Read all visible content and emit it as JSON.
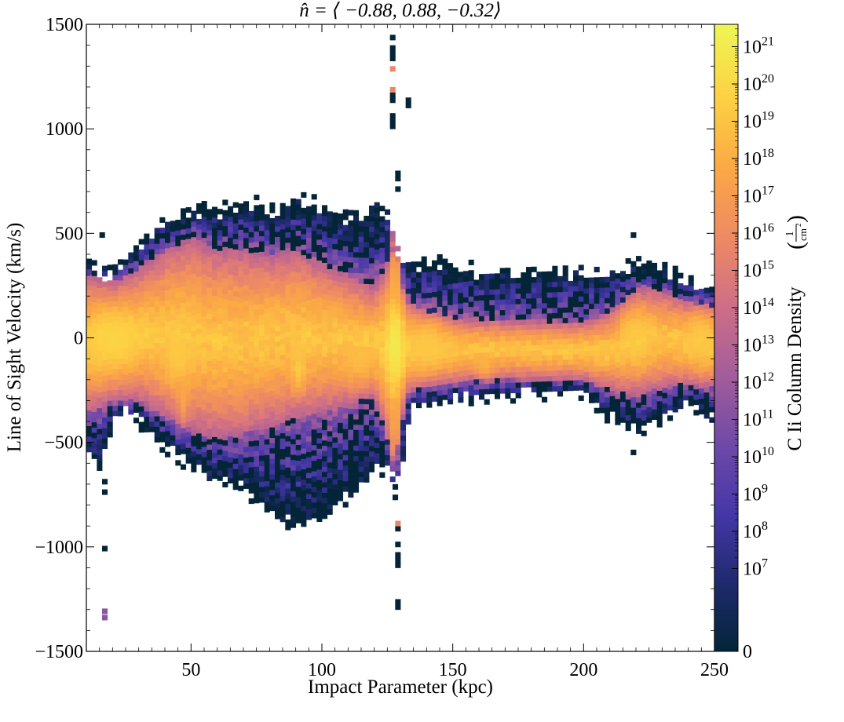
{
  "chart_data": {
    "type": "heatmap",
    "title": "n̂ = ⟨ −0.88, 0.88, −0.32⟩",
    "xlabel": "Impact Parameter (kpc)",
    "ylabel": "Line of Sight Velocity (km/s)",
    "xlim": [
      10,
      250
    ],
    "ylim": [
      -1500,
      1500
    ],
    "x_ticks": [
      {
        "value": 50,
        "label": "50"
      },
      {
        "value": 100,
        "label": "100"
      },
      {
        "value": 150,
        "label": "150"
      },
      {
        "value": 200,
        "label": "200"
      },
      {
        "value": 250,
        "label": "250"
      }
    ],
    "y_ticks": [
      {
        "value": -1500,
        "label": "−1500"
      },
      {
        "value": -1000,
        "label": "−1000"
      },
      {
        "value": -500,
        "label": "−500"
      },
      {
        "value": 0,
        "label": "0"
      },
      {
        "value": 500,
        "label": "500"
      },
      {
        "value": 1000,
        "label": "1000"
      },
      {
        "value": 1500,
        "label": "1500"
      }
    ],
    "colorbar": {
      "label": "C Ii Column Density",
      "unit": "(1/cm²)",
      "unit_num": "1",
      "unit_den": "cm",
      "unit_exp": "2",
      "scale": "symlog",
      "vmax_exponent": 21.6,
      "zero_label": "0",
      "ticks": [
        {
          "exp": 7,
          "base": "10",
          "power": "7"
        },
        {
          "exp": 8,
          "base": "10",
          "power": "8"
        },
        {
          "exp": 9,
          "base": "10",
          "power": "9"
        },
        {
          "exp": 10,
          "base": "10",
          "power": "10"
        },
        {
          "exp": 11,
          "base": "10",
          "power": "11"
        },
        {
          "exp": 12,
          "base": "10",
          "power": "12"
        },
        {
          "exp": 13,
          "base": "10",
          "power": "13"
        },
        {
          "exp": 14,
          "base": "10",
          "power": "14"
        },
        {
          "exp": 15,
          "base": "10",
          "power": "15"
        },
        {
          "exp": 16,
          "base": "10",
          "power": "16"
        },
        {
          "exp": 17,
          "base": "10",
          "power": "17"
        },
        {
          "exp": 18,
          "base": "10",
          "power": "18"
        },
        {
          "exp": 19,
          "base": "10",
          "power": "19"
        },
        {
          "exp": 20,
          "base": "10",
          "power": "20"
        },
        {
          "exp": 21,
          "base": "10",
          "power": "21"
        }
      ],
      "colormap": [
        "#032537",
        "#1f2a6e",
        "#4537a8",
        "#6f49a8",
        "#a35d9a",
        "#cf6e86",
        "#ee8a63",
        "#fba845",
        "#fdd043",
        "#eef655"
      ]
    },
    "bins": {
      "x_width_kpc": 2,
      "v_width_kms": 25
    },
    "envelope_upper": [
      [
        10,
        350
      ],
      [
        20,
        300
      ],
      [
        30,
        440
      ],
      [
        40,
        560
      ],
      [
        50,
        620
      ],
      [
        60,
        600
      ],
      [
        70,
        650
      ],
      [
        80,
        620
      ],
      [
        90,
        660
      ],
      [
        100,
        640
      ],
      [
        110,
        560
      ],
      [
        120,
        640
      ],
      [
        125,
        600
      ],
      [
        128,
        500
      ],
      [
        130,
        380
      ],
      [
        135,
        340
      ],
      [
        140,
        380
      ],
      [
        150,
        350
      ],
      [
        160,
        330
      ],
      [
        180,
        320
      ],
      [
        200,
        320
      ],
      [
        210,
        310
      ],
      [
        220,
        350
      ],
      [
        230,
        330
      ],
      [
        240,
        280
      ],
      [
        250,
        230
      ]
    ],
    "envelope_lower": [
      [
        10,
        -540
      ],
      [
        15,
        -620
      ],
      [
        20,
        -420
      ],
      [
        25,
        -360
      ],
      [
        30,
        -400
      ],
      [
        40,
        -520
      ],
      [
        50,
        -620
      ],
      [
        60,
        -690
      ],
      [
        70,
        -720
      ],
      [
        80,
        -830
      ],
      [
        90,
        -900
      ],
      [
        100,
        -860
      ],
      [
        110,
        -760
      ],
      [
        120,
        -640
      ],
      [
        125,
        -620
      ],
      [
        128,
        -700
      ],
      [
        130,
        -640
      ],
      [
        135,
        -320
      ],
      [
        140,
        -320
      ],
      [
        150,
        -300
      ],
      [
        160,
        -280
      ],
      [
        180,
        -270
      ],
      [
        200,
        -260
      ],
      [
        210,
        -380
      ],
      [
        220,
        -450
      ],
      [
        230,
        -380
      ],
      [
        240,
        -300
      ],
      [
        250,
        -400
      ]
    ],
    "core_upper": [
      [
        10,
        300
      ],
      [
        20,
        260
      ],
      [
        30,
        330
      ],
      [
        40,
        420
      ],
      [
        50,
        480
      ],
      [
        60,
        430
      ],
      [
        70,
        420
      ],
      [
        80,
        400
      ],
      [
        90,
        420
      ],
      [
        100,
        360
      ],
      [
        110,
        300
      ],
      [
        120,
        240
      ],
      [
        128,
        420
      ],
      [
        132,
        170
      ],
      [
        140,
        130
      ],
      [
        150,
        100
      ],
      [
        160,
        90
      ],
      [
        180,
        80
      ],
      [
        200,
        80
      ],
      [
        210,
        120
      ],
      [
        220,
        240
      ],
      [
        230,
        230
      ],
      [
        240,
        170
      ],
      [
        250,
        150
      ]
    ],
    "core_lower": [
      [
        10,
        -360
      ],
      [
        20,
        -300
      ],
      [
        30,
        -300
      ],
      [
        40,
        -380
      ],
      [
        50,
        -440
      ],
      [
        60,
        -480
      ],
      [
        70,
        -460
      ],
      [
        80,
        -420
      ],
      [
        90,
        -380
      ],
      [
        100,
        -360
      ],
      [
        110,
        -320
      ],
      [
        120,
        -280
      ],
      [
        128,
        -600
      ],
      [
        132,
        -260
      ],
      [
        140,
        -230
      ],
      [
        150,
        -220
      ],
      [
        160,
        -200
      ],
      [
        180,
        -200
      ],
      [
        200,
        -200
      ],
      [
        210,
        -250
      ],
      [
        220,
        -280
      ],
      [
        230,
        -240
      ],
      [
        240,
        -220
      ],
      [
        250,
        -240
      ]
    ],
    "hotspots": [
      {
        "x": 128,
        "v": -30,
        "sx": 4,
        "sv": 220,
        "peak": 21.0
      },
      {
        "x": 128,
        "v": 200,
        "sx": 2,
        "sv": 420,
        "peak": 18.5
      },
      {
        "x": 128,
        "v": -350,
        "sx": 2,
        "sv": 280,
        "peak": 18.0
      },
      {
        "x": 20,
        "v": 0,
        "sx": 12,
        "sv": 160,
        "peak": 20.0
      },
      {
        "x": 45,
        "v": -70,
        "sx": 6,
        "sv": 160,
        "peak": 19.5
      },
      {
        "x": 47,
        "v": -280,
        "sx": 2,
        "sv": 120,
        "peak": 18.0
      },
      {
        "x": 76,
        "v": 20,
        "sx": 3,
        "sv": 70,
        "peak": 19.0
      },
      {
        "x": 91,
        "v": -150,
        "sx": 3,
        "sv": 100,
        "peak": 19.5
      },
      {
        "x": 104,
        "v": 100,
        "sx": 4,
        "sv": 80,
        "peak": 18.5
      },
      {
        "x": 115,
        "v": -90,
        "sx": 6,
        "sv": 120,
        "peak": 19.0
      },
      {
        "x": 140,
        "v": -40,
        "sx": 8,
        "sv": 120,
        "peak": 19.5
      },
      {
        "x": 162,
        "v": -120,
        "sx": 3,
        "sv": 80,
        "peak": 18.5
      },
      {
        "x": 220,
        "v": 10,
        "sx": 6,
        "sv": 120,
        "peak": 19.5
      },
      {
        "x": 245,
        "v": 0,
        "sx": 6,
        "sv": 130,
        "peak": 19.5
      }
    ],
    "streak": {
      "x_min": 127,
      "x_max": 130,
      "spans": [
        [
          126,
          128,
          1000,
          1500
        ],
        [
          128,
          130,
          700,
          800
        ],
        [
          132,
          134,
          1100,
          1130
        ],
        [
          127,
          129,
          -800,
          -700
        ],
        [
          128,
          130,
          -1100,
          -850
        ],
        [
          128,
          130,
          -1300,
          -1250
        ]
      ]
    },
    "outliers": [
      [
        16,
        -1020
      ],
      [
        16,
        -1350
      ],
      [
        16,
        -1320
      ],
      [
        16,
        -750
      ],
      [
        16,
        -700
      ],
      [
        218,
        480
      ],
      [
        218,
        -560
      ],
      [
        15,
        480
      ]
    ]
  }
}
